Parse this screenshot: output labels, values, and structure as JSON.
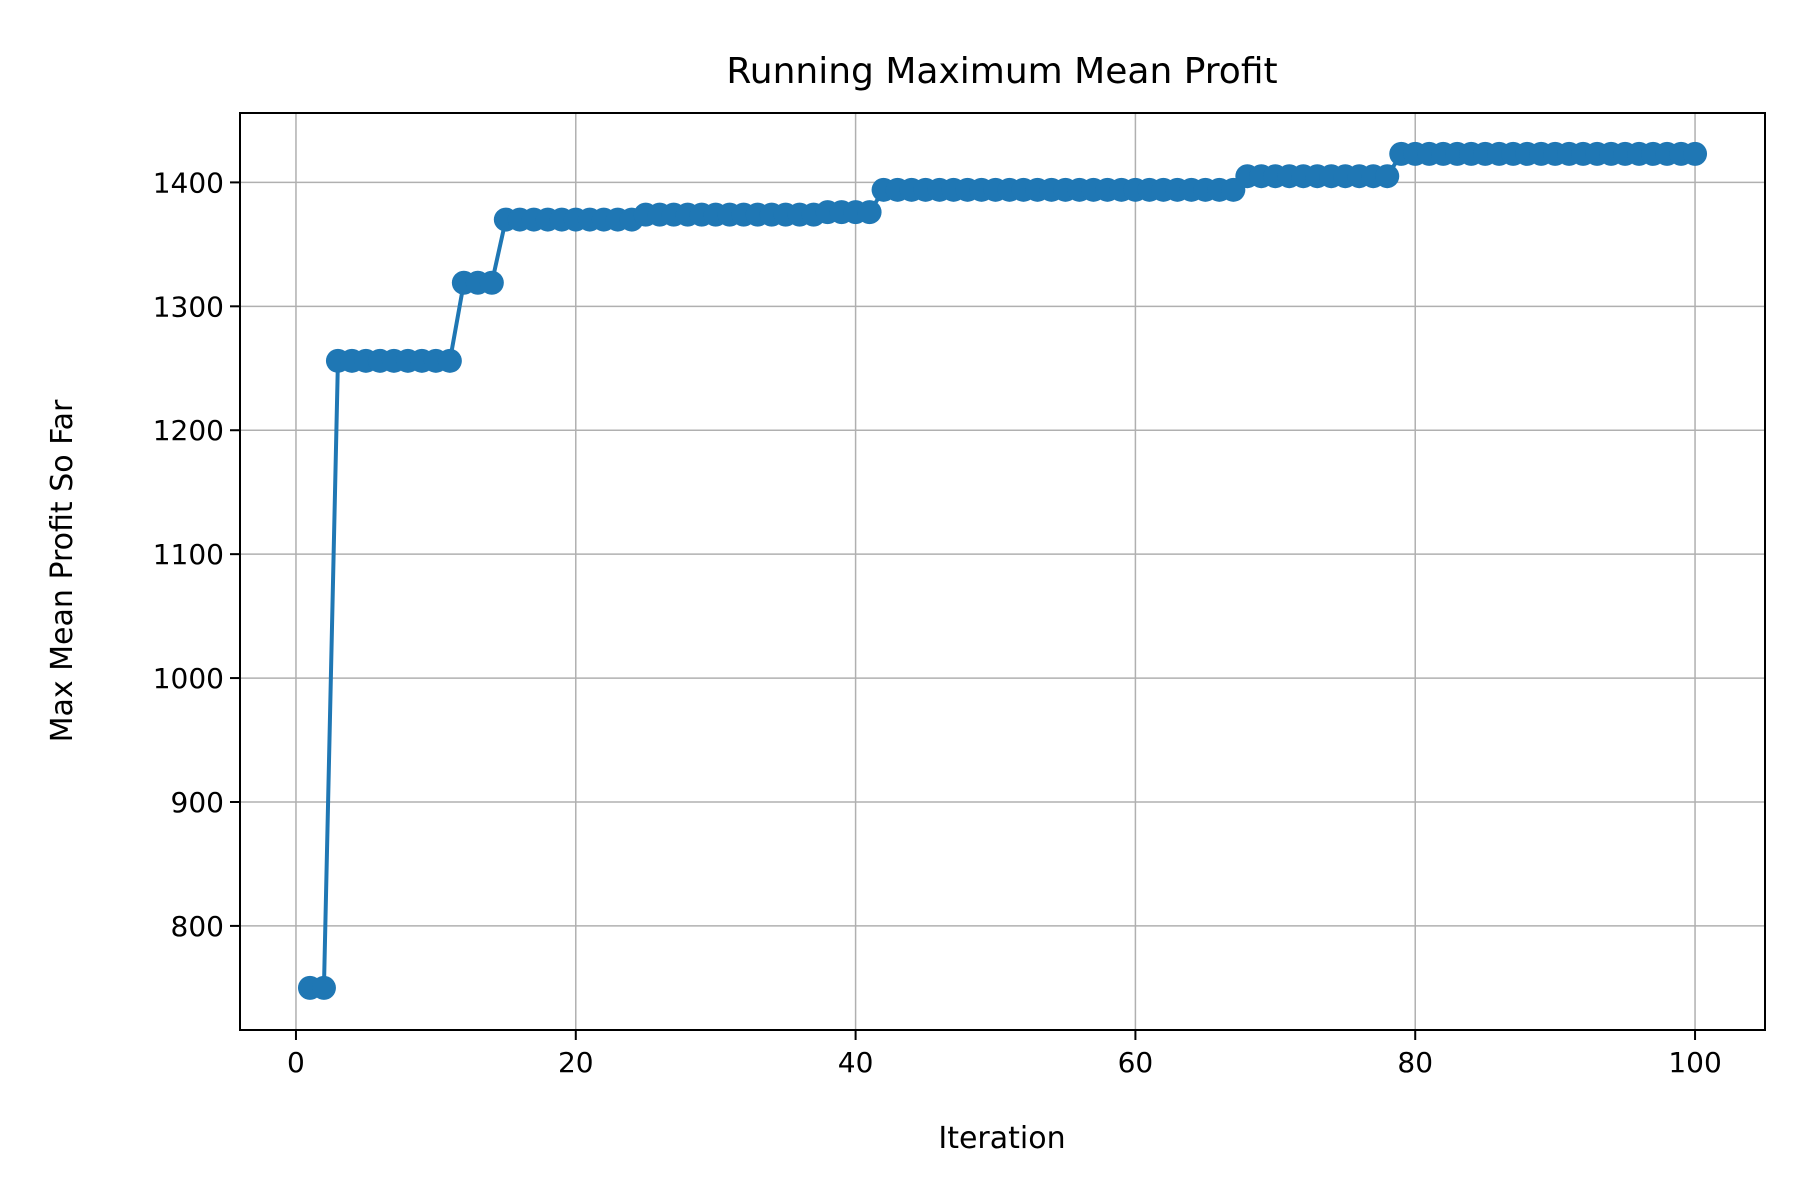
{
  "chart_data": {
    "type": "line",
    "title": "Running Maximum Mean Profit",
    "xlabel": "Iteration",
    "ylabel": "Max Mean Profit So Far",
    "xlim": [
      -4,
      105
    ],
    "ylim": [
      716,
      1456
    ],
    "xticks": [
      0,
      20,
      40,
      60,
      80,
      100
    ],
    "yticks": [
      800,
      900,
      1000,
      1100,
      1200,
      1300,
      1400
    ],
    "grid": true,
    "legend": "none",
    "color": "#1f77b4",
    "marker": "circle",
    "series": [
      {
        "x": [
          1,
          2,
          3,
          4,
          5,
          6,
          7,
          8,
          9,
          10,
          11,
          12,
          13,
          14,
          15,
          16,
          17,
          18,
          19,
          20,
          21,
          22,
          23,
          24,
          25,
          26,
          27,
          28,
          29,
          30,
          31,
          32,
          33,
          34,
          35,
          36,
          37,
          38,
          39,
          40,
          41,
          42,
          43,
          44,
          45,
          46,
          47,
          48,
          49,
          50,
          51,
          52,
          53,
          54,
          55,
          56,
          57,
          58,
          59,
          60,
          61,
          62,
          63,
          64,
          65,
          66,
          67,
          68,
          69,
          70,
          71,
          72,
          73,
          74,
          75,
          76,
          77,
          78,
          79,
          80,
          81,
          82,
          83,
          84,
          85,
          86,
          87,
          88,
          89,
          90,
          91,
          92,
          93,
          94,
          95,
          96,
          97,
          98,
          99,
          100
        ],
        "y": [
          750,
          750,
          1256,
          1256,
          1256,
          1256,
          1256,
          1256,
          1256,
          1256,
          1256,
          1319,
          1319,
          1319,
          1370,
          1370,
          1370,
          1370,
          1370,
          1370,
          1370,
          1370,
          1370,
          1370,
          1374,
          1374,
          1374,
          1374,
          1374,
          1374,
          1374,
          1374,
          1374,
          1374,
          1374,
          1374,
          1374,
          1376,
          1376,
          1376,
          1376,
          1394,
          1394,
          1394,
          1394,
          1394,
          1394,
          1394,
          1394,
          1394,
          1394,
          1394,
          1394,
          1394,
          1394,
          1394,
          1394,
          1394,
          1394,
          1394,
          1394,
          1394,
          1394,
          1394,
          1394,
          1394,
          1394,
          1405,
          1405,
          1405,
          1405,
          1405,
          1405,
          1405,
          1405,
          1405,
          1405,
          1405,
          1423,
          1423,
          1423,
          1423,
          1423,
          1423,
          1423,
          1423,
          1423,
          1423,
          1423,
          1423,
          1423,
          1423,
          1423,
          1423,
          1423,
          1423,
          1423,
          1423,
          1423,
          1423
        ]
      }
    ]
  }
}
